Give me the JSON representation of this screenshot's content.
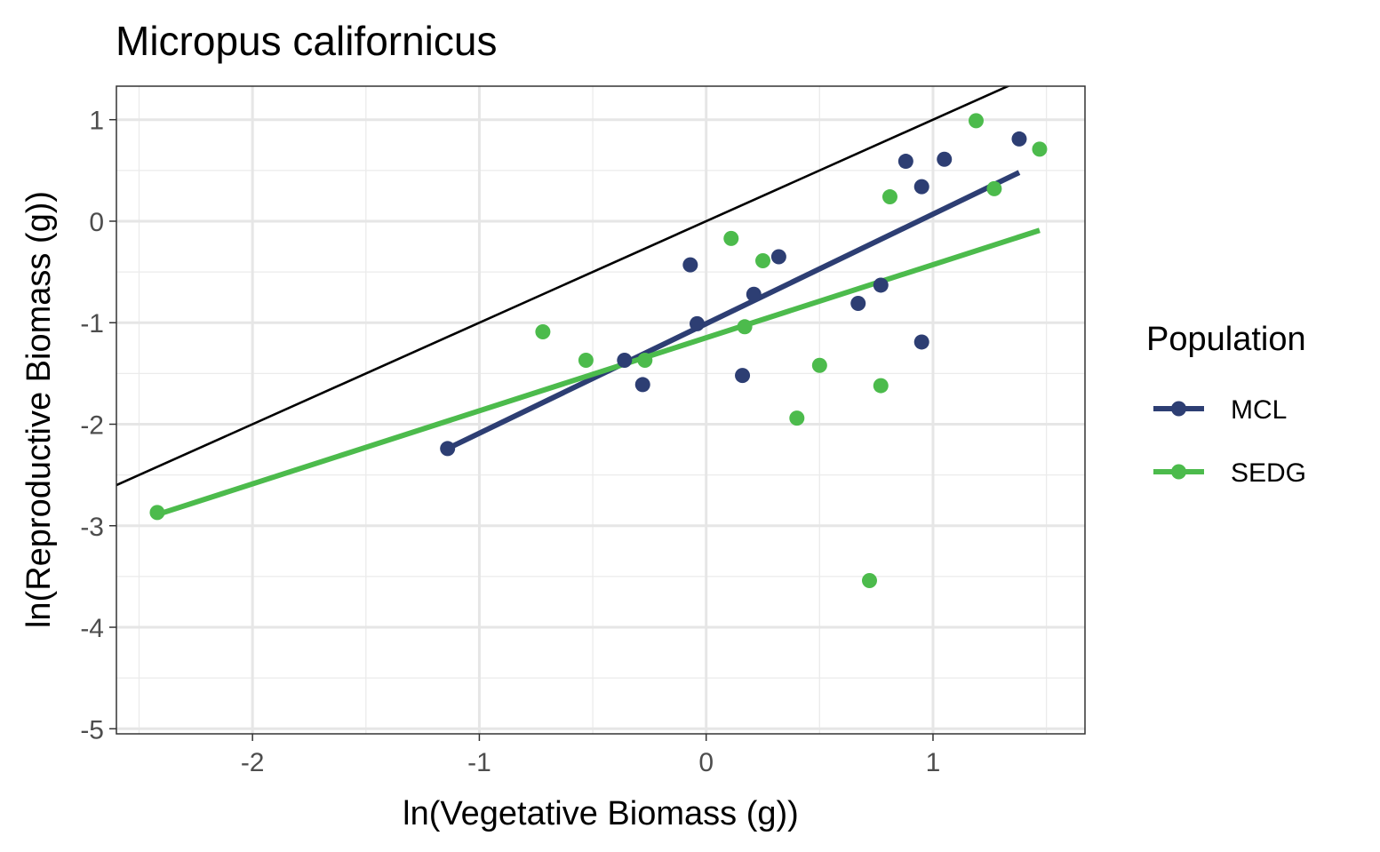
{
  "chart_data": {
    "type": "scatter",
    "title": "Micropus californicus",
    "xlabel": "ln(Vegetative Biomass (g))",
    "ylabel": "ln(Reproductive Biomass (g))",
    "xlim": [
      -2.6,
      1.67
    ],
    "ylim": [
      -5.05,
      1.33
    ],
    "x_ticks": [
      -2,
      -1,
      0,
      1
    ],
    "y_ticks": [
      1,
      0,
      -1,
      -2,
      -3,
      -4,
      -5
    ],
    "x_tick_labels": [
      "-2",
      "-1",
      "0",
      "1"
    ],
    "y_tick_labels": [
      "1",
      "0",
      "-1",
      "-2",
      "-3",
      "-4",
      "-5"
    ],
    "grid": true,
    "reference_line": {
      "slope": 1,
      "intercept": 0,
      "color": "#000000"
    },
    "legend": {
      "title": "Population",
      "position": "right"
    },
    "series": [
      {
        "name": "MCL",
        "color": "#2d3e73",
        "points": [
          [
            -1.14,
            -2.24
          ],
          [
            -0.36,
            -1.37
          ],
          [
            -0.28,
            -1.61
          ],
          [
            -0.07,
            -0.43
          ],
          [
            -0.04,
            -1.01
          ],
          [
            0.16,
            -1.52
          ],
          [
            0.21,
            -0.72
          ],
          [
            0.32,
            -0.35
          ],
          [
            0.67,
            -0.81
          ],
          [
            0.77,
            -0.63
          ],
          [
            0.88,
            0.59
          ],
          [
            0.95,
            -1.19
          ],
          [
            0.95,
            0.34
          ],
          [
            1.05,
            0.61
          ],
          [
            1.38,
            0.81
          ]
        ],
        "fit": {
          "x": [
            -1.14,
            1.38
          ],
          "y": [
            -2.24,
            0.48
          ]
        }
      },
      {
        "name": "SEDG",
        "color": "#4cbb4c",
        "points": [
          [
            -2.42,
            -2.87
          ],
          [
            -0.72,
            -1.09
          ],
          [
            -0.53,
            -1.37
          ],
          [
            -0.27,
            -1.37
          ],
          [
            0.11,
            -0.17
          ],
          [
            0.17,
            -1.04
          ],
          [
            0.25,
            -0.39
          ],
          [
            0.4,
            -1.94
          ],
          [
            0.5,
            -1.42
          ],
          [
            0.72,
            -3.54
          ],
          [
            0.77,
            -1.62
          ],
          [
            0.81,
            0.24
          ],
          [
            1.19,
            0.99
          ],
          [
            1.27,
            0.32
          ],
          [
            1.47,
            0.71
          ]
        ],
        "fit": {
          "x": [
            -2.42,
            1.47
          ],
          "y": [
            -2.89,
            -0.09
          ]
        }
      }
    ]
  }
}
